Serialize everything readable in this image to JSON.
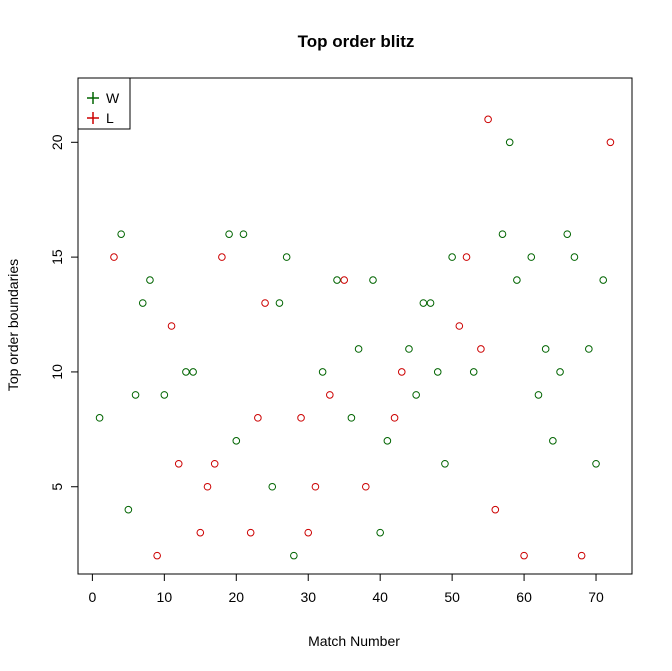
{
  "chart_data": {
    "type": "scatter",
    "title": "Top order blitz",
    "xlabel": "Match Number",
    "ylabel": "Top order boundaries",
    "xlim": [
      -2,
      75
    ],
    "ylim": [
      1.2,
      22.8
    ],
    "xticks": [
      "0",
      "10",
      "20",
      "30",
      "40",
      "50",
      "60",
      "70"
    ],
    "yticks": [
      "5",
      "10",
      "15",
      "20"
    ],
    "grid": false,
    "legend_position": "top-left",
    "series": [
      {
        "name": "W",
        "color": "#006400",
        "points": [
          [
            1,
            8
          ],
          [
            4,
            16
          ],
          [
            5,
            4
          ],
          [
            6,
            9
          ],
          [
            7,
            13
          ],
          [
            8,
            14
          ],
          [
            10,
            9
          ],
          [
            13,
            10
          ],
          [
            14,
            10
          ],
          [
            19,
            16
          ],
          [
            20,
            7
          ],
          [
            21,
            16
          ],
          [
            25,
            5
          ],
          [
            26,
            13
          ],
          [
            27,
            15
          ],
          [
            28,
            2
          ],
          [
            32,
            10
          ],
          [
            34,
            14
          ],
          [
            36,
            8
          ],
          [
            37,
            11
          ],
          [
            39,
            14
          ],
          [
            40,
            3
          ],
          [
            41,
            7
          ],
          [
            44,
            11
          ],
          [
            45,
            9
          ],
          [
            46,
            13
          ],
          [
            47,
            13
          ],
          [
            48,
            10
          ],
          [
            49,
            6
          ],
          [
            50,
            15
          ],
          [
            53,
            10
          ],
          [
            57,
            16
          ],
          [
            58,
            20
          ],
          [
            59,
            14
          ],
          [
            61,
            15
          ],
          [
            62,
            9
          ],
          [
            63,
            11
          ],
          [
            64,
            7
          ],
          [
            65,
            10
          ],
          [
            66,
            16
          ],
          [
            67,
            15
          ],
          [
            69,
            11
          ],
          [
            70,
            6
          ],
          [
            71,
            14
          ]
        ]
      },
      {
        "name": "L",
        "color": "#CC0000",
        "points": [
          [
            3,
            15
          ],
          [
            9,
            2
          ],
          [
            11,
            12
          ],
          [
            12,
            6
          ],
          [
            15,
            3
          ],
          [
            16,
            5
          ],
          [
            17,
            6
          ],
          [
            18,
            15
          ],
          [
            22,
            3
          ],
          [
            23,
            8
          ],
          [
            24,
            13
          ],
          [
            29,
            8
          ],
          [
            30,
            3
          ],
          [
            31,
            5
          ],
          [
            33,
            9
          ],
          [
            35,
            14
          ],
          [
            38,
            5
          ],
          [
            42,
            8
          ],
          [
            43,
            10
          ],
          [
            51,
            12
          ],
          [
            52,
            15
          ],
          [
            54,
            11
          ],
          [
            55,
            21
          ],
          [
            56,
            4
          ],
          [
            60,
            2
          ],
          [
            68,
            2
          ],
          [
            72,
            20
          ]
        ]
      }
    ]
  }
}
